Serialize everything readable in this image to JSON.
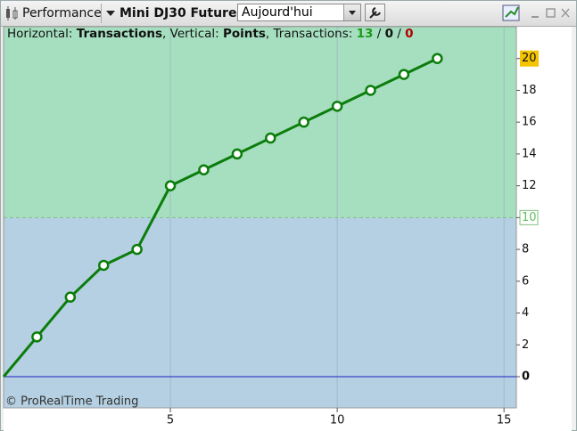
{
  "toolbar": {
    "section": "Performance",
    "instrument": "Mini DJ30 Future",
    "period": "Aujourd'hui"
  },
  "info": {
    "horizontal_prefix": "Horizontal:",
    "vertical_prefix": ", Vertical:",
    "transactions_prefix": ", Transactions:",
    "separator": "/"
  },
  "watermark": "© ProRealTime Trading",
  "chart_data": {
    "type": "line",
    "xlabel": "Transactions",
    "ylabel": "Points",
    "counts": [
      {
        "value": 13,
        "color": "#1a9a1a"
      },
      {
        "value": 0,
        "color": "#111111"
      },
      {
        "value": 0,
        "color": "#b00000"
      }
    ],
    "x": [
      0,
      1,
      2,
      3,
      4,
      5,
      6,
      7,
      8,
      9,
      10,
      11,
      12,
      13
    ],
    "values": [
      0,
      2.5,
      5,
      7,
      8,
      12,
      13,
      14,
      15,
      16,
      17,
      18,
      19,
      20
    ],
    "color": "#0b7d0b",
    "xlim": [
      0,
      15.37
    ],
    "xticks": [
      5,
      10,
      15
    ],
    "ylim": [
      -1.96,
      22
    ],
    "yticks": [
      0,
      2,
      4,
      6,
      8,
      10,
      12,
      14,
      16,
      18,
      20
    ],
    "midline": 10,
    "zero_line_color": "#2020c0",
    "upper_zone_color": "#a6dfc0",
    "lower_zone_color": "#b4d0e2",
    "grid": true
  }
}
